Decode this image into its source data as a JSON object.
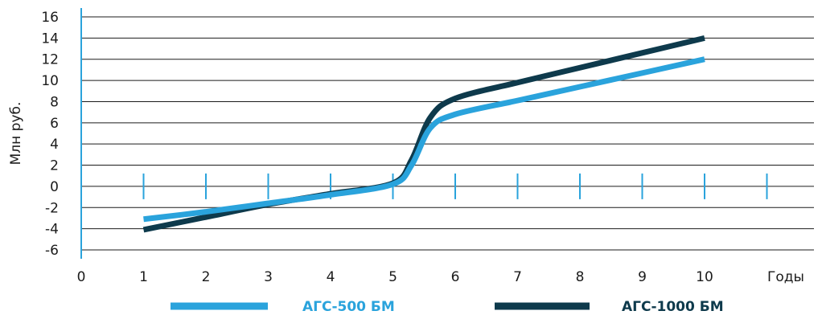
{
  "chart_data": {
    "type": "line",
    "ylabel": "Млн руб.",
    "xlabel": "Годы",
    "ylim": [
      -6,
      16
    ],
    "xlim": [
      0,
      11
    ],
    "yticks": [
      "16",
      "14",
      "12",
      "10",
      "8",
      "6",
      "4",
      "2",
      "0",
      "-2",
      "-4",
      "-6"
    ],
    "ytick_values": [
      16,
      14,
      12,
      10,
      8,
      6,
      4,
      2,
      0,
      -2,
      -4,
      -6
    ],
    "xticks": [
      "0",
      "1",
      "2",
      "3",
      "4",
      "5",
      "6",
      "7",
      "8",
      "9",
      "10"
    ],
    "xtick_values": [
      0,
      1,
      2,
      3,
      4,
      5,
      6,
      7,
      8,
      9,
      10
    ],
    "zero_line_ticks": [
      1,
      2,
      3,
      4,
      5,
      6,
      7,
      8,
      9,
      10,
      11
    ],
    "grid": true,
    "legend_position": "bottom",
    "series": [
      {
        "name": "АГС-500 БМ",
        "color": "#2aa3dc",
        "x": [
          1,
          2,
          3,
          4,
          5,
          5.3,
          5.6,
          6,
          7,
          8,
          9,
          10
        ],
        "y": [
          -3.1,
          -2.4,
          -1.6,
          -0.8,
          0.2,
          2.0,
          5.5,
          6.8,
          8.1,
          9.4,
          10.7,
          12.0
        ]
      },
      {
        "name": "АГС-1000 БМ",
        "color": "#0e3a4c",
        "x": [
          1,
          2,
          3,
          4,
          5,
          5.3,
          5.6,
          6,
          7,
          8,
          9,
          10
        ],
        "y": [
          -4.1,
          -2.9,
          -1.7,
          -0.7,
          0.3,
          2.5,
          6.5,
          8.3,
          9.8,
          11.2,
          12.6,
          14.0
        ]
      }
    ]
  }
}
